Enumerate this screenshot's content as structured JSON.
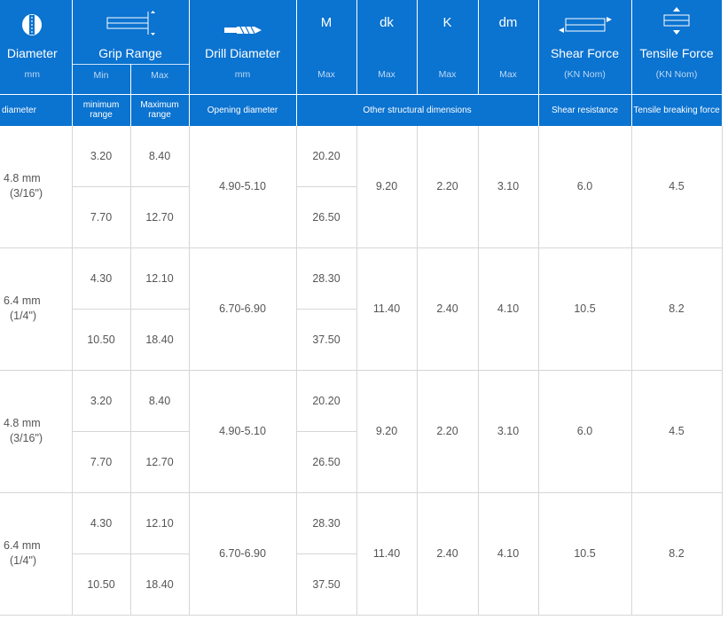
{
  "headers": {
    "diameter": "Diameter",
    "grip_range": "Grip Range",
    "drill_diameter": "Drill Diameter",
    "m": "M",
    "dk": "dk",
    "k": "K",
    "dm": "dm",
    "shear_force": "Shear Force",
    "tensile_force": "Tensile Force"
  },
  "units": {
    "diameter": "mm",
    "grip_min": "Min",
    "grip_max": "Max",
    "drill": "mm",
    "m": "Max",
    "dk": "Max",
    "k": "Max",
    "dm": "Max",
    "shear": "(KN Nom)",
    "tensile": "(KN Nom)"
  },
  "descriptions": {
    "diameter": "diameter",
    "grip_min": "minimum range",
    "grip_max": "Maximum range",
    "drill": "Opening diameter",
    "structural": "Other structural dimensions",
    "shear": "Shear resistance",
    "tensile": "Tensile breaking force"
  },
  "icons": {
    "diameter": "rivet-head-icon",
    "grip": "grip-range-icon",
    "drill": "drill-bit-icon",
    "shear": "shear-arrow-icon",
    "tensile": "tensile-arrow-icon"
  },
  "colors": {
    "header_bg": "#0b73d0",
    "text": "#555555"
  },
  "groups": [
    {
      "diameter_line1": "4.8 mm",
      "diameter_line2": "(3/16\")",
      "rows": [
        {
          "grip_min": "3.20",
          "grip_max": "8.40",
          "m": "20.20"
        },
        {
          "grip_min": "7.70",
          "grip_max": "12.70",
          "m": "26.50"
        }
      ],
      "drill": "4.90-5.10",
      "dk": "9.20",
      "k": "2.20",
      "dm": "3.10",
      "shear": "6.0",
      "tensile": "4.5"
    },
    {
      "diameter_line1": "6.4 mm",
      "diameter_line2": "(1/4\")",
      "rows": [
        {
          "grip_min": "4.30",
          "grip_max": "12.10",
          "m": "28.30"
        },
        {
          "grip_min": "10.50",
          "grip_max": "18.40",
          "m": "37.50"
        }
      ],
      "drill": "6.70-6.90",
      "dk": "11.40",
      "k": "2.40",
      "dm": "4.10",
      "shear": "10.5",
      "tensile": "8.2"
    },
    {
      "diameter_line1": "4.8 mm",
      "diameter_line2": "(3/16\")",
      "rows": [
        {
          "grip_min": "3.20",
          "grip_max": "8.40",
          "m": "20.20"
        },
        {
          "grip_min": "7.70",
          "grip_max": "12.70",
          "m": "26.50"
        }
      ],
      "drill": "4.90-5.10",
      "dk": "9.20",
      "k": "2.20",
      "dm": "3.10",
      "shear": "6.0",
      "tensile": "4.5"
    },
    {
      "diameter_line1": "6.4 mm",
      "diameter_line2": "(1/4\")",
      "rows": [
        {
          "grip_min": "4.30",
          "grip_max": "12.10",
          "m": "28.30"
        },
        {
          "grip_min": "10.50",
          "grip_max": "18.40",
          "m": "37.50"
        }
      ],
      "drill": "6.70-6.90",
      "dk": "11.40",
      "k": "2.40",
      "dm": "4.10",
      "shear": "10.5",
      "tensile": "8.2"
    }
  ]
}
